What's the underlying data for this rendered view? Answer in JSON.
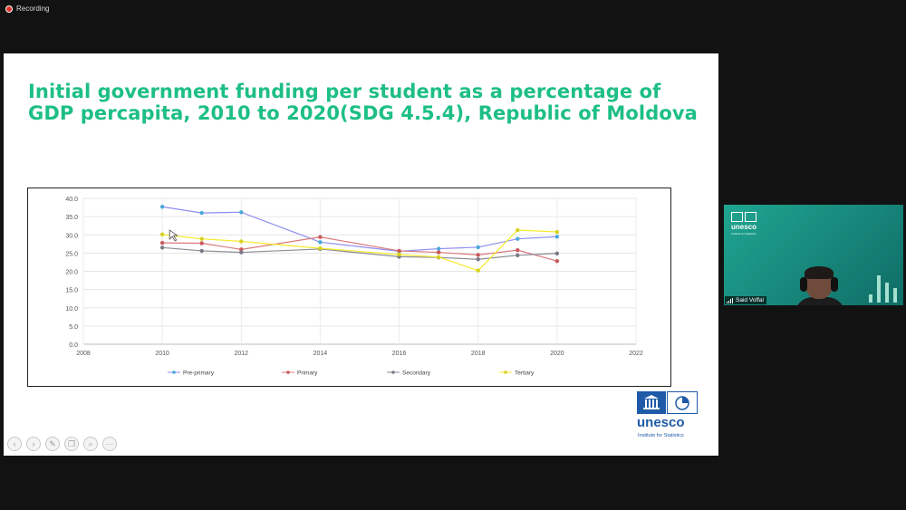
{
  "recording": {
    "label": "Recording"
  },
  "slide": {
    "title": "Initial government funding per student as a percentage of GDP percapita, 2010 to 2020(SDG 4.5.4), Republic of Moldova"
  },
  "chart_data": {
    "type": "line",
    "title": "",
    "xlabel": "",
    "ylabel": "",
    "xlim": [
      2008,
      2022
    ],
    "ylim": [
      0,
      40
    ],
    "x_ticks": [
      "2008",
      "2010",
      "2012",
      "2014",
      "2016",
      "2018",
      "2020",
      "2022"
    ],
    "y_ticks": [
      "0.0",
      "5.0",
      "10.0",
      "15.0",
      "20.0",
      "25.0",
      "30.0",
      "35.0",
      "40.0"
    ],
    "grid": true,
    "legend_position": "bottom",
    "series": [
      {
        "name": "Pre-primary",
        "color": "#4aa8d8",
        "line_color": "#8f8ef0",
        "points": [
          [
            2010,
            37.7
          ],
          [
            2011,
            36.0
          ],
          [
            2012,
            36.2
          ],
          [
            2014,
            28.0
          ],
          [
            2016,
            25.5
          ],
          [
            2017,
            26.2
          ],
          [
            2018,
            26.6
          ],
          [
            2019,
            28.9
          ],
          [
            2020,
            29.5
          ]
        ]
      },
      {
        "name": "Primary",
        "color": "#c9585a",
        "line_color": "#d97a7c",
        "points": [
          [
            2010,
            27.8
          ],
          [
            2011,
            27.7
          ],
          [
            2012,
            26.0
          ],
          [
            2014,
            29.4
          ],
          [
            2016,
            25.6
          ],
          [
            2017,
            25.2
          ],
          [
            2018,
            24.5
          ],
          [
            2019,
            25.8
          ],
          [
            2020,
            22.8
          ]
        ]
      },
      {
        "name": "Secondary",
        "color": "#7a7a86",
        "line_color": "#8b8b95",
        "points": [
          [
            2010,
            26.5
          ],
          [
            2011,
            25.6
          ],
          [
            2012,
            25.2
          ],
          [
            2014,
            26.1
          ],
          [
            2016,
            24.0
          ],
          [
            2017,
            23.8
          ],
          [
            2018,
            23.3
          ],
          [
            2019,
            24.4
          ],
          [
            2020,
            24.9
          ]
        ]
      },
      {
        "name": "Tertiary",
        "color": "#d6d11e",
        "line_color": "#f5ea2a",
        "points": [
          [
            2010,
            30.1
          ],
          [
            2011,
            28.9
          ],
          [
            2012,
            28.2
          ],
          [
            2014,
            26.3
          ],
          [
            2016,
            24.6
          ],
          [
            2017,
            23.9
          ],
          [
            2018,
            20.2
          ],
          [
            2019,
            31.3
          ],
          [
            2020,
            30.8
          ]
        ]
      }
    ]
  },
  "logo": {
    "word": "unesco",
    "sub": "Institute for Statistics"
  },
  "video": {
    "logo_word": "unesco",
    "logo_sub": "Institute for Statistics",
    "participant_name": "Said Voffal"
  },
  "tools": [
    "back-icon",
    "forward-icon",
    "pen-icon",
    "copy-icon",
    "zoom-icon",
    "more-icon"
  ]
}
